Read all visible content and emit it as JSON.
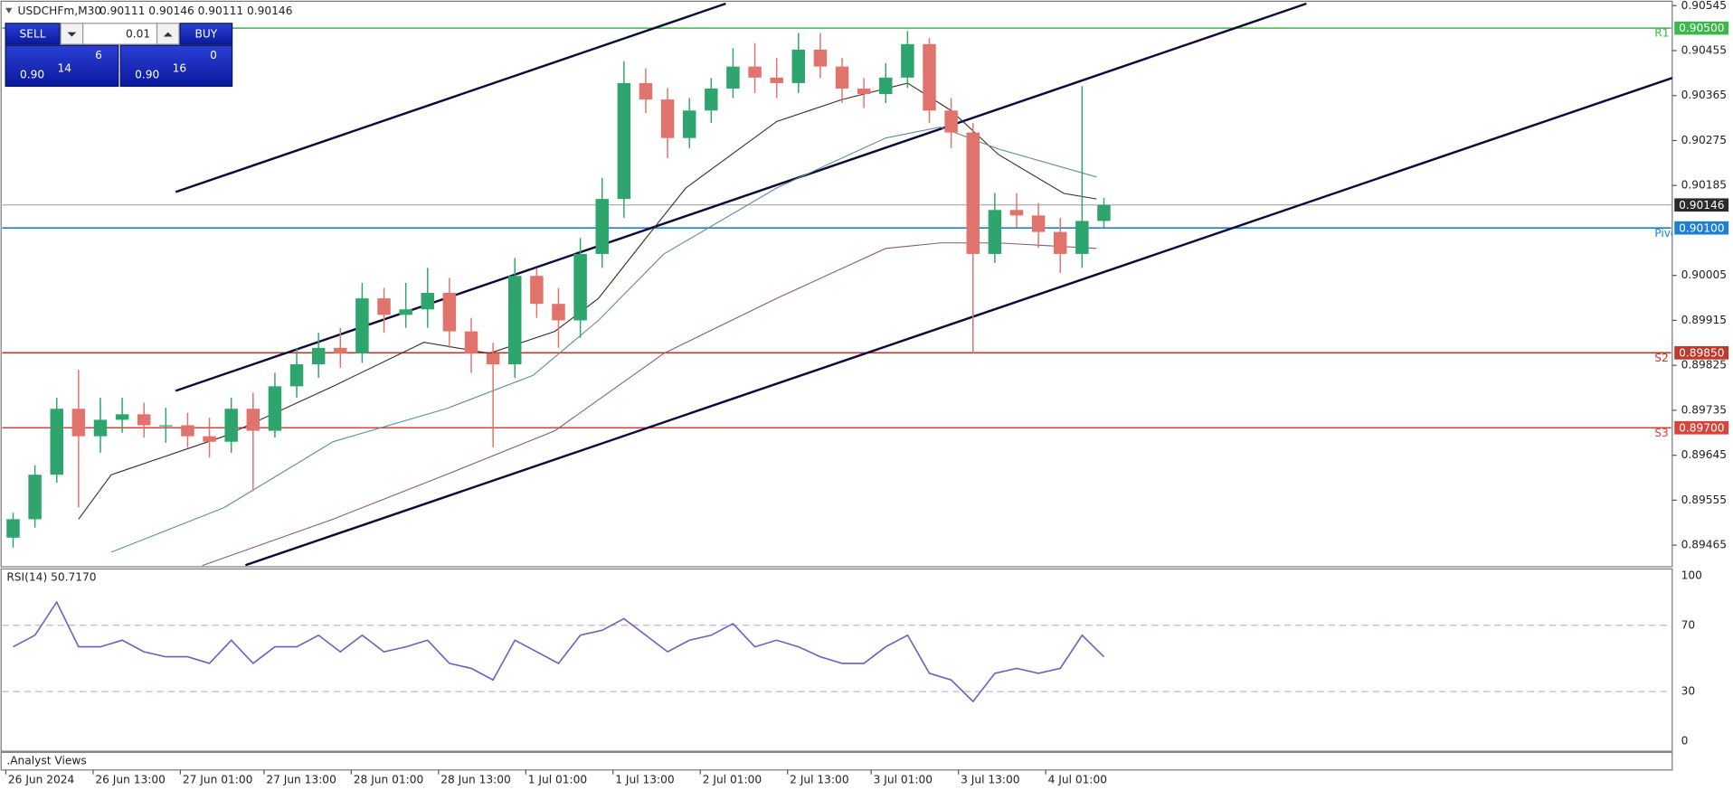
{
  "trade_panel": {
    "sell": "SELL",
    "lot": "0.01",
    "buy": "BUY",
    "bid": {
      "big": "0.90",
      "main": "14",
      "small": "6"
    },
    "ask": {
      "big": "0.90",
      "main": "16",
      "small": "0"
    }
  },
  "footer": {
    "label": ".Analyst Views"
  },
  "chart_data": [
    {
      "type": "candlestick",
      "title": "USDCHFm,M30",
      "subtitle": "0.90111 0.90146 0.90111 0.90146",
      "up_color": "#2ea56c",
      "down_color": "#e0736b",
      "xlim": [
        0,
        459
      ],
      "ylim": [
        0.89424,
        0.90556
      ],
      "xticks": [
        {
          "value": 1,
          "label": "26 Jun 2024"
        },
        {
          "value": 25,
          "label": "26 Jun 13:00"
        },
        {
          "value": 49,
          "label": "27 Jun 01:00"
        },
        {
          "value": 72,
          "label": "27 Jun 13:00"
        },
        {
          "value": 96,
          "label": "28 Jun 01:00"
        },
        {
          "value": 120,
          "label": "28 Jun 13:00"
        },
        {
          "value": 144,
          "label": "1 Jul 01:00"
        },
        {
          "value": 168,
          "label": "1 Jul 13:00"
        },
        {
          "value": 192,
          "label": "2 Jul 01:00"
        },
        {
          "value": 216,
          "label": "2 Jul 13:00"
        },
        {
          "value": 239,
          "label": "3 Jul 01:00"
        },
        {
          "value": 263,
          "label": "3 Jul 13:00"
        },
        {
          "value": 287,
          "label": "4 Jul 01:00"
        }
      ],
      "yticks": [
        0.90545,
        0.90455,
        0.90365,
        0.90275,
        0.90185,
        0.90005,
        0.89915,
        0.89825,
        0.89735,
        0.89645,
        0.89555,
        0.89465
      ],
      "levels": [
        {
          "value": 0.905,
          "label": "0.90500",
          "color": "#3cb84a",
          "tag": "R1"
        },
        {
          "value": 0.90146,
          "color": "#2b2b2b"
        },
        {
          "value": 0.901,
          "label": "0.90100",
          "color": "#1e7fd6",
          "tag": "Pivot"
        },
        {
          "value": 0.8985,
          "label": "0.89850",
          "color": "#c0392b",
          "tag": "S2"
        },
        {
          "value": 0.897,
          "label": "0.89700",
          "color": "#d9443a",
          "tag": "S3"
        }
      ],
      "trendline_color": "#0b0b3b",
      "trendlines": [
        {
          "x": [
            47.7,
            199
          ],
          "values": [
            0.90172,
            0.90549
          ]
        },
        {
          "x": [
            47.7,
            358.7
          ],
          "values": [
            0.89774,
            0.90549
          ]
        },
        {
          "x": [
            66.9,
            459.6
          ],
          "values": [
            0.89425,
            0.90401
          ]
        }
      ],
      "moving_averages": [
        {
          "color": "#3a2a20",
          "x": [
            21,
            30,
            61,
            91,
            116,
            134,
            152,
            164,
            176,
            188,
            213,
            231,
            249,
            261,
            274,
            292,
            301
          ],
          "values": [
            0.89517,
            0.89606,
            0.89683,
            0.89783,
            0.89871,
            0.89849,
            0.89893,
            0.89959,
            0.9007,
            0.9018,
            0.90313,
            0.90357,
            0.9039,
            0.90335,
            0.90247,
            0.90169,
            0.90158
          ]
        },
        {
          "color": "#5d8f8f",
          "x": [
            30,
            61,
            91,
            122,
            146,
            164,
            182,
            213,
            243,
            258,
            274,
            301
          ],
          "values": [
            0.89451,
            0.8954,
            0.89672,
            0.89738,
            0.89805,
            0.89915,
            0.90048,
            0.9018,
            0.9028,
            0.90302,
            0.90258,
            0.90202
          ]
        },
        {
          "color": "#8a5a78",
          "x": [
            55,
            91,
            122,
            152,
            182,
            213,
            243,
            258,
            274,
            301
          ],
          "values": [
            0.89424,
            0.89517,
            0.89606,
            0.89694,
            0.89849,
            0.89959,
            0.90059,
            0.9007,
            0.9007,
            0.90059
          ]
        }
      ],
      "x": [
        3,
        9,
        15,
        21,
        27,
        33,
        39,
        45,
        51,
        57,
        63,
        69,
        75,
        81,
        87,
        93,
        99,
        105,
        111,
        117,
        123,
        129,
        135,
        141,
        147,
        153,
        159,
        165,
        171,
        177,
        183,
        189,
        195,
        201,
        207,
        213,
        219,
        225,
        231,
        237,
        243,
        249,
        255,
        261,
        267,
        273,
        279,
        285,
        291,
        297,
        303
      ],
      "candles": [
        [
          0.8948,
          0.8953,
          0.8946,
          0.89517
        ],
        [
          0.89517,
          0.89625,
          0.895,
          0.89606
        ],
        [
          0.89606,
          0.8976,
          0.8959,
          0.89738
        ],
        [
          0.89738,
          0.89816,
          0.8954,
          0.89683
        ],
        [
          0.89683,
          0.8976,
          0.8965,
          0.89716
        ],
        [
          0.89716,
          0.8976,
          0.8969,
          0.89727
        ],
        [
          0.89727,
          0.8975,
          0.8968,
          0.89705
        ],
        [
          0.89705,
          0.8974,
          0.8967,
          0.89705
        ],
        [
          0.89705,
          0.8973,
          0.8966,
          0.89683
        ],
        [
          0.89683,
          0.8972,
          0.8964,
          0.89672
        ],
        [
          0.89672,
          0.8976,
          0.8965,
          0.89738
        ],
        [
          0.89738,
          0.8977,
          0.89573,
          0.89694
        ],
        [
          0.89694,
          0.8981,
          0.8968,
          0.89783
        ],
        [
          0.89783,
          0.8986,
          0.8976,
          0.89827
        ],
        [
          0.89827,
          0.8989,
          0.898,
          0.8986
        ],
        [
          0.8986,
          0.899,
          0.8982,
          0.89849
        ],
        [
          0.89849,
          0.8999,
          0.8983,
          0.89959
        ],
        [
          0.89959,
          0.8998,
          0.8989,
          0.89926
        ],
        [
          0.89926,
          0.8999,
          0.899,
          0.89937
        ],
        [
          0.89937,
          0.9002,
          0.899,
          0.8997
        ],
        [
          0.8997,
          0.9,
          0.8986,
          0.89893
        ],
        [
          0.89893,
          0.8992,
          0.8981,
          0.89849
        ],
        [
          0.89849,
          0.8987,
          0.89661,
          0.89827
        ],
        [
          0.89827,
          0.9004,
          0.898,
          0.90004
        ],
        [
          0.90004,
          0.9002,
          0.8992,
          0.89948
        ],
        [
          0.89948,
          0.8998,
          0.8986,
          0.89915
        ],
        [
          0.89915,
          0.9008,
          0.8988,
          0.90048
        ],
        [
          0.90048,
          0.902,
          0.9002,
          0.90158
        ],
        [
          0.90158,
          0.90434,
          0.9012,
          0.9039
        ],
        [
          0.9039,
          0.9042,
          0.9033,
          0.90357
        ],
        [
          0.90357,
          0.9038,
          0.9024,
          0.9028
        ],
        [
          0.9028,
          0.9036,
          0.9026,
          0.90335
        ],
        [
          0.90335,
          0.904,
          0.9031,
          0.90379
        ],
        [
          0.90379,
          0.9046,
          0.9036,
          0.90423
        ],
        [
          0.90423,
          0.9047,
          0.9037,
          0.90401
        ],
        [
          0.90401,
          0.9044,
          0.9036,
          0.9039
        ],
        [
          0.9039,
          0.9049,
          0.9037,
          0.90457
        ],
        [
          0.90457,
          0.9049,
          0.904,
          0.90423
        ],
        [
          0.90423,
          0.9044,
          0.9035,
          0.90379
        ],
        [
          0.90379,
          0.904,
          0.9034,
          0.90368
        ],
        [
          0.90368,
          0.9043,
          0.9035,
          0.90401
        ],
        [
          0.90401,
          0.90494,
          0.9038,
          0.90468
        ],
        [
          0.90468,
          0.9048,
          0.9031,
          0.90335
        ],
        [
          0.90335,
          0.9036,
          0.9026,
          0.90291
        ],
        [
          0.90291,
          0.9031,
          0.89849,
          0.90048
        ],
        [
          0.90048,
          0.9017,
          0.9003,
          0.90136
        ],
        [
          0.90136,
          0.9017,
          0.901,
          0.90125
        ],
        [
          0.90125,
          0.9015,
          0.9006,
          0.90092
        ],
        [
          0.90092,
          0.9012,
          0.9001,
          0.90048
        ],
        [
          0.90048,
          0.90384,
          0.9002,
          0.90114
        ],
        [
          0.90114,
          0.9016,
          0.901,
          0.90146
        ]
      ]
    },
    {
      "type": "line",
      "title": "RSI(14) 50.7170",
      "color": "#6b5fc0",
      "ylim": [
        0,
        100
      ],
      "yticks": [
        100,
        70,
        30,
        0
      ],
      "values": [
        57,
        64,
        84,
        57,
        57,
        61,
        54,
        51,
        51,
        47,
        61,
        47,
        57,
        57,
        64,
        54,
        64,
        54,
        57,
        61,
        47,
        44,
        37,
        61,
        54,
        47,
        64,
        67,
        74,
        64,
        54,
        61,
        64,
        71,
        57,
        61,
        57,
        51,
        47,
        47,
        57,
        64,
        41,
        37,
        24,
        41,
        44,
        41,
        44,
        64,
        51
      ]
    }
  ]
}
